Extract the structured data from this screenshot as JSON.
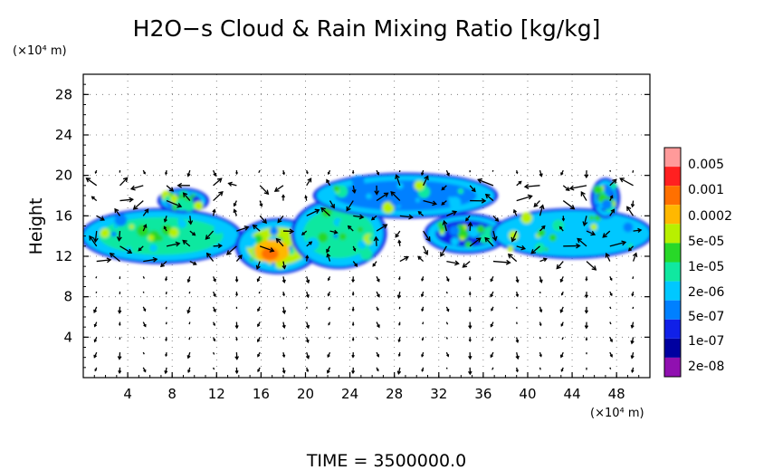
{
  "chart_data": {
    "type": "heatmap",
    "title": "H2O−s Cloud & Rain Mixing Ratio [kg/kg]",
    "ylabel": "Height",
    "y_unit_label": "(×10⁴ m)",
    "x_unit_label": "(×10⁴ m)",
    "footer": "TIME = 3500000.0",
    "xlim": [
      0,
      51
    ],
    "ylim": [
      0,
      30
    ],
    "xticks": [
      4,
      8,
      12,
      16,
      20,
      24,
      28,
      32,
      36,
      40,
      44,
      48
    ],
    "yticks": [
      4,
      8,
      12,
      16,
      20,
      24,
      28
    ],
    "colorbar": {
      "labels": [
        "0.005",
        "0.001",
        "0.0002",
        "5e-05",
        "1e-05",
        "2e-06",
        "5e-07",
        "1e-07",
        "2e-08"
      ],
      "colors": [
        "#ff9a9a",
        "#ff2020",
        "#ff7000",
        "#ffb800",
        "#b8f000",
        "#28d828",
        "#10e8a0",
        "#00c8ff",
        "#0080ff",
        "#1020e8",
        "#0000a0",
        "#9010b0"
      ]
    },
    "cloud_regions": [
      {
        "x": [
          0,
          14
        ],
        "y": [
          11.5,
          16.5
        ],
        "level": "1e-05"
      },
      {
        "x": [
          7,
          11
        ],
        "y": [
          16.5,
          18.5
        ],
        "level": "1e-07"
      },
      {
        "x": [
          14,
          21
        ],
        "y": [
          10.5,
          15.5
        ],
        "level": "0.0002",
        "peak": "0.001"
      },
      {
        "x": [
          19,
          27
        ],
        "y": [
          11,
          17.5
        ],
        "level": "1e-05"
      },
      {
        "x": [
          21,
          37
        ],
        "y": [
          16,
          20
        ],
        "level": "5e-07"
      },
      {
        "x": [
          31,
          38
        ],
        "y": [
          12.5,
          16
        ],
        "level": "1e-07"
      },
      {
        "x": [
          37,
          51
        ],
        "y": [
          12,
          16.5
        ],
        "level": "2e-06"
      },
      {
        "x": [
          46,
          48
        ],
        "y": [
          16,
          19.5
        ],
        "level": "1e-07"
      }
    ],
    "wind_vectors": "vector field over domain; strongest arrows in cloud layer 10-20",
    "grid": "dotted"
  }
}
